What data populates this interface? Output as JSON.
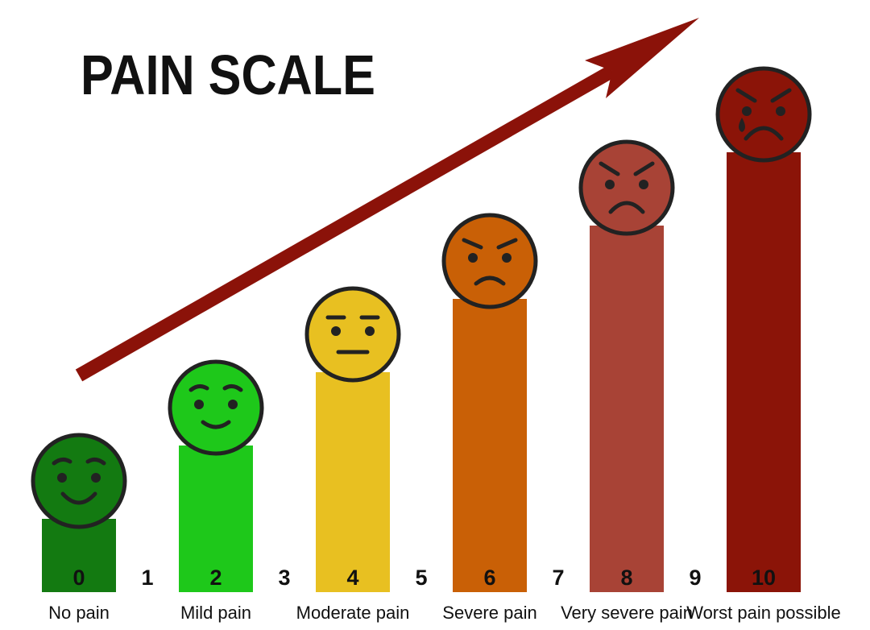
{
  "title": "PAIN SCALE",
  "colors": {
    "text": "#111111",
    "arrow": "#8b1209",
    "face_stroke": "#222222"
  },
  "levels": [
    {
      "value": 0,
      "number": "0",
      "label": "No pain",
      "fill": "#137a11",
      "expression": "smile-big"
    },
    {
      "value": 2,
      "number": "2",
      "label": "Mild pain",
      "fill": "#1ec81a",
      "expression": "smile"
    },
    {
      "value": 4,
      "number": "4",
      "label": "Moderate pain",
      "fill": "#e8c021",
      "expression": "neutral"
    },
    {
      "value": 6,
      "number": "6",
      "label": "Severe pain",
      "fill": "#c96006",
      "expression": "frown"
    },
    {
      "value": 8,
      "number": "8",
      "label": "Very severe pain",
      "fill": "#a84336",
      "expression": "frown-angry"
    },
    {
      "value": 10,
      "number": "10",
      "label": "Worst pain possible",
      "fill": "#8b1408",
      "expression": "crying"
    }
  ],
  "odd_numbers": [
    "1",
    "3",
    "5",
    "7",
    "9"
  ]
}
